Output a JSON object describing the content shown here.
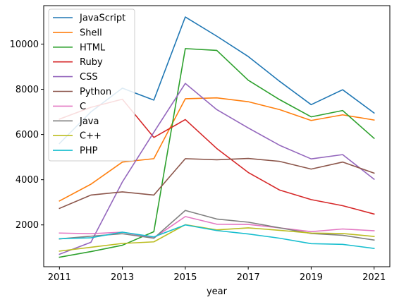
{
  "chart_data": {
    "type": "line",
    "title": "",
    "xlabel": "year",
    "ylabel": "",
    "x": [
      2011,
      2012,
      2013,
      2014,
      2015,
      2016,
      2017,
      2018,
      2019,
      2020,
      2021
    ],
    "xticks": [
      "2011",
      "2013",
      "2015",
      "2017",
      "2019",
      "2021"
    ],
    "yticks": [
      "2000",
      "4000",
      "6000",
      "8000",
      "10000"
    ],
    "xlim": [
      2010.5,
      2021.5
    ],
    "ylim": [
      150,
      11700
    ],
    "grid": false,
    "legend_position": "upper-left",
    "series": [
      {
        "name": "JavaScript",
        "color": "#1f77b4",
        "values": [
          5600,
          7000,
          8050,
          7520,
          11200,
          10350,
          9450,
          8350,
          7320,
          7980,
          6950
        ]
      },
      {
        "name": "Shell",
        "color": "#ff7f0e",
        "values": [
          3060,
          3800,
          4780,
          4930,
          7580,
          7620,
          7450,
          7100,
          6620,
          6870,
          6640
        ]
      },
      {
        "name": "HTML",
        "color": "#2ca02c",
        "values": [
          570,
          820,
          1100,
          1700,
          9800,
          9720,
          8400,
          7540,
          6780,
          7060,
          5830
        ]
      },
      {
        "name": "Ruby",
        "color": "#d62728",
        "values": [
          6680,
          7200,
          7560,
          5870,
          6660,
          5380,
          4320,
          3540,
          3120,
          2850,
          2480
        ]
      },
      {
        "name": "CSS",
        "color": "#9467bd",
        "values": [
          700,
          1230,
          3900,
          6100,
          8260,
          7100,
          6290,
          5520,
          4920,
          5110,
          4020
        ]
      },
      {
        "name": "Python",
        "color": "#8c564b",
        "values": [
          2730,
          3320,
          3460,
          3320,
          4930,
          4880,
          4940,
          4810,
          4470,
          4780,
          4290
        ]
      },
      {
        "name": "C",
        "color": "#e377c2",
        "values": [
          1640,
          1610,
          1680,
          1420,
          2370,
          2030,
          2020,
          1870,
          1700,
          1820,
          1740
        ]
      },
      {
        "name": "Java",
        "color": "#7f7f7f",
        "values": [
          1380,
          1500,
          1610,
          1410,
          2640,
          2260,
          2120,
          1870,
          1620,
          1540,
          1330
        ]
      },
      {
        "name": "C++",
        "color": "#bcbd22",
        "values": [
          840,
          1010,
          1180,
          1250,
          2010,
          1780,
          1870,
          1760,
          1640,
          1620,
          1490
        ]
      },
      {
        "name": "PHP",
        "color": "#17becf",
        "values": [
          1390,
          1430,
          1680,
          1470,
          2000,
          1750,
          1600,
          1410,
          1170,
          1140,
          960
        ]
      }
    ]
  }
}
